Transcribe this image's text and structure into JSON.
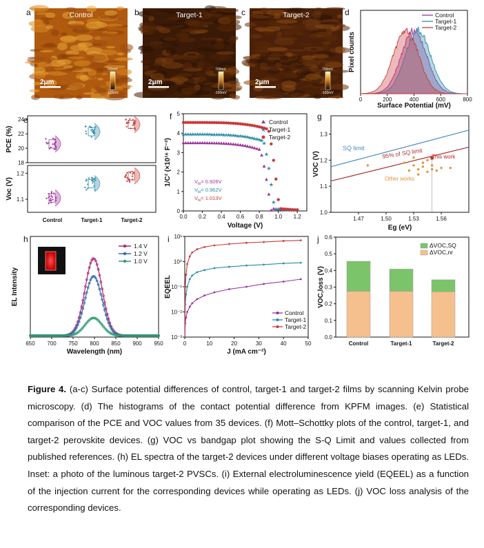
{
  "panels": {
    "a": {
      "label": "a",
      "title": "Control",
      "scalebar": "2μm",
      "cbar_top": "700mV",
      "cbar_bottom": "-100mV"
    },
    "b": {
      "label": "b",
      "title": "Target-1",
      "scalebar": "2μm",
      "cbar_top": "700mV",
      "cbar_bottom": "-100mV"
    },
    "c": {
      "label": "c",
      "title": "Target-2",
      "scalebar": "2μm",
      "cbar_top": "700mV",
      "cbar_bottom": "-100mV"
    },
    "d": {
      "label": "d"
    },
    "e": {
      "label": "e"
    },
    "f": {
      "label": "f",
      "annotations": [
        "V",
        "bi",
        "= 0.926V",
        "= 0.962V",
        "= 1.013V"
      ]
    },
    "g": {
      "label": "g",
      "sq_label": "SQ limit",
      "sq95_label": "95% of SQ limit",
      "this_work": "This work",
      "other_works": "Other works"
    },
    "h": {
      "label": "h"
    },
    "i": {
      "label": "i"
    },
    "j": {
      "label": "j"
    }
  },
  "colors": {
    "control": "#9b2f9b",
    "target1": "#2a8aa8",
    "target2": "#c83a3a",
    "el_14": "#b0246a",
    "el_12": "#2f6bb0",
    "el_10": "#2f9a72",
    "sq": "#4a8ac8",
    "sq95": "#a83030",
    "other": "#e8903a",
    "vloss_rad": "#7cc46a",
    "vloss_nr": "#f6c08e"
  },
  "chart_data": [
    {
      "panel": "d",
      "type": "area",
      "xlabel": "Surface Potential (mV)",
      "ylabel": "Pixel counts",
      "xlim": [
        0,
        800
      ],
      "xticks": [
        0,
        200,
        400,
        600,
        800
      ],
      "series": [
        {
          "name": "Control",
          "center": 400,
          "width": 95
        },
        {
          "name": "Target-1",
          "center": 430,
          "width": 95
        },
        {
          "name": "Target-2",
          "center": 340,
          "width": 95
        }
      ],
      "legend": "top-right"
    },
    {
      "panel": "e-top",
      "type": "scatter",
      "ylabel": "PCE (%)",
      "ylim": [
        18,
        24.5
      ],
      "yticks": [
        18,
        20,
        22,
        24
      ],
      "categories": [
        "Control",
        "Target-1",
        "Target-2"
      ],
      "means": [
        20.6,
        22.3,
        23.3
      ]
    },
    {
      "panel": "e-bottom",
      "type": "scatter",
      "ylabel": "Voc (V)",
      "ylim": [
        1.05,
        1.23
      ],
      "yticks": [
        1.1,
        1.2
      ],
      "categories": [
        "Control",
        "Target-1",
        "Target-2"
      ],
      "means": [
        1.105,
        1.16,
        1.19
      ]
    },
    {
      "panel": "f",
      "type": "scatter",
      "xlabel": "Voltage (V)",
      "ylabel": "1/C² (×10¹⁶ F⁻²)",
      "xlim": [
        0.0,
        1.3
      ],
      "ylim": [
        0,
        5
      ],
      "xticks": [
        0.0,
        0.2,
        0.4,
        0.6,
        0.8,
        1.0,
        1.2
      ],
      "yticks": [
        0,
        1,
        2,
        3,
        4,
        5
      ],
      "series": [
        {
          "name": "Control",
          "plateau": 3.5,
          "vbi": "0.926V",
          "vend": 0.926
        },
        {
          "name": "Target-1",
          "plateau": 3.95,
          "vbi": "0.962V",
          "vend": 0.962
        },
        {
          "name": "Target-2",
          "plateau": 4.55,
          "vbi": "1.013V",
          "vend": 1.013
        }
      ],
      "legend": "top-right"
    },
    {
      "panel": "g",
      "type": "scatter",
      "xlabel": "Eg (eV)",
      "ylabel": "VOC (V)",
      "xlim": [
        1.44,
        1.59
      ],
      "ylim": [
        1.0,
        1.37
      ],
      "xticks": [
        1.47,
        1.5,
        1.53,
        1.56
      ],
      "yticks": [
        1.0,
        1.1,
        1.2,
        1.3
      ],
      "sq_line": [
        [
          1.44,
          1.175
        ],
        [
          1.59,
          1.315
        ]
      ],
      "sq95_line": [
        [
          1.44,
          1.12
        ],
        [
          1.59,
          1.25
        ]
      ],
      "this_work": [
        1.55,
        1.21
      ],
      "other_works": [
        [
          1.48,
          1.18
        ],
        [
          1.52,
          1.19
        ],
        [
          1.53,
          1.21
        ],
        [
          1.53,
          1.18
        ],
        [
          1.535,
          1.165
        ],
        [
          1.54,
          1.175
        ],
        [
          1.54,
          1.19
        ],
        [
          1.545,
          1.155
        ],
        [
          1.55,
          1.18
        ],
        [
          1.55,
          1.165
        ],
        [
          1.555,
          1.16
        ],
        [
          1.56,
          1.17
        ],
        [
          1.57,
          1.17
        ],
        [
          1.525,
          1.16
        ],
        [
          1.535,
          1.145
        ],
        [
          1.545,
          1.2
        ]
      ]
    },
    {
      "panel": "h",
      "type": "line",
      "xlabel": "Wavelength (nm)",
      "ylabel": "EL Intensity",
      "xlim": [
        650,
        950
      ],
      "xticks": [
        650,
        700,
        750,
        800,
        850,
        900,
        950
      ],
      "series": [
        {
          "name": "1.4 V",
          "peak": 1.0,
          "center": 798,
          "width": 20
        },
        {
          "name": "1.2 V",
          "peak": 0.77,
          "center": 798,
          "width": 20
        },
        {
          "name": "1.0 V",
          "peak": 0.23,
          "center": 798,
          "width": 20
        }
      ],
      "legend": "top-right"
    },
    {
      "panel": "i",
      "type": "line",
      "xlabel": "J (mA cm⁻²)",
      "ylabel": "EQEEL",
      "xlim": [
        0,
        50
      ],
      "ylim_log": [
        -3,
        1
      ],
      "xticks": [
        0,
        10,
        20,
        30,
        40,
        50
      ],
      "yticks": [
        "10⁻³",
        "10⁻²",
        "10⁻¹",
        "10⁰",
        "10¹"
      ],
      "series": [
        {
          "name": "Control",
          "x": [
            0.2,
            0.5,
            1,
            2,
            3,
            5,
            8,
            12,
            18,
            25,
            32,
            40,
            47
          ],
          "y": [
            0.0035,
            0.006,
            0.01,
            0.016,
            0.022,
            0.032,
            0.045,
            0.06,
            0.08,
            0.1,
            0.13,
            0.16,
            0.2
          ]
        },
        {
          "name": "Target-1",
          "x": [
            0.2,
            0.5,
            1,
            2,
            3,
            5,
            8,
            12,
            18,
            25,
            32,
            40,
            47
          ],
          "y": [
            0.02,
            0.05,
            0.1,
            0.2,
            0.28,
            0.38,
            0.46,
            0.55,
            0.62,
            0.7,
            0.76,
            0.85,
            0.9
          ]
        },
        {
          "name": "Target-2",
          "x": [
            0.2,
            0.5,
            1,
            2,
            3,
            5,
            8,
            12,
            18,
            25,
            32,
            40,
            47
          ],
          "y": [
            0.1,
            0.3,
            0.8,
            1.6,
            2.3,
            3.1,
            3.8,
            4.4,
            5.0,
            5.6,
            6.0,
            6.6,
            7.0
          ]
        }
      ],
      "legend": "bottom-right"
    },
    {
      "panel": "j",
      "type": "bar",
      "ylabel": "VOC,loss (V)",
      "ylim": [
        0.0,
        0.6
      ],
      "yticks": [
        0.0,
        0.1,
        0.2,
        0.3,
        0.4,
        0.5,
        0.6
      ],
      "categories": [
        "Control",
        "Target-1",
        "Target-2"
      ],
      "series": [
        {
          "name": "ΔVOC,nr",
          "values": [
            0.275,
            0.275,
            0.272
          ]
        },
        {
          "name": "ΔVOC,SQ",
          "values": [
            0.18,
            0.133,
            0.072
          ]
        }
      ],
      "legend": "top-right"
    }
  ],
  "caption": {
    "bold": "Figure 4.",
    "text": " (a-c) Surface potential differences of control, target-1 and target-2 films by scanning Kelvin probe microscopy. (d) The histograms of the contact potential difference from KPFM images. (e) Statistical comparison of the PCE and VOC values from 35 devices. (f) Mott–Schottky plots of the control, target-1, and target-2 perovskite devices. (g) VOC vs bandgap plot showing the S-Q Limit and values collected from published references. (h) EL spectra of the target-2 devices under different voltage biases operating as LEDs. Inset: a photo of the luminous target-2 PVSCs. (i) External electroluminescence yield (EQEEL) as a function of the injection current for the corresponding devices while operating as LEDs. (j) VOC loss analysis of the corresponding devices."
  }
}
